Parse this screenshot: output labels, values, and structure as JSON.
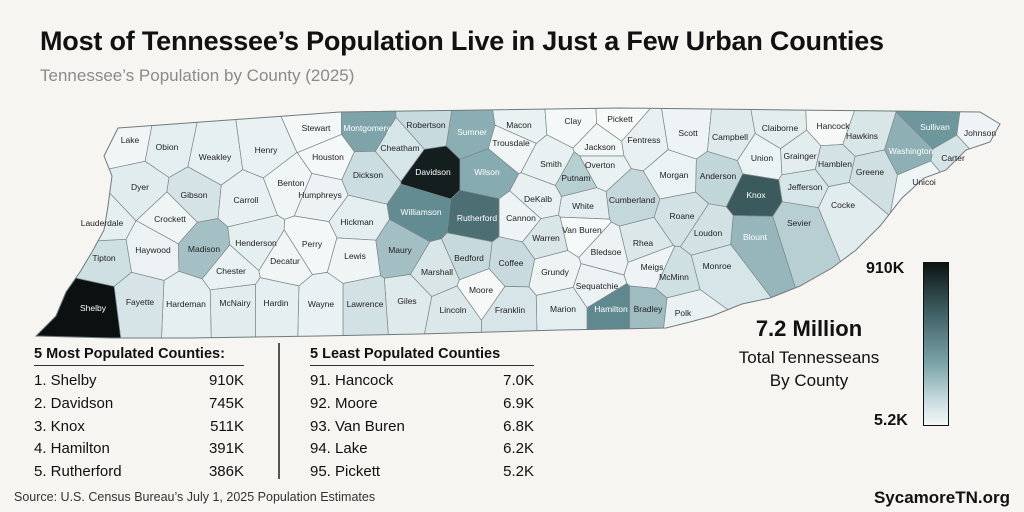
{
  "title": "Most of Tennessee’s Population Live in Just a Few Urban Counties",
  "subtitle": "Tennessee’s Population by County (2025)",
  "counties": [
    {
      "name": "Lake",
      "shade": "#f1f5f6"
    },
    {
      "name": "Obion",
      "shade": "#e4eef0"
    },
    {
      "name": "Weakley",
      "shade": "#e6eff1"
    },
    {
      "name": "Henry",
      "shade": "#e9f1f2"
    },
    {
      "name": "Stewart",
      "shade": "#f4f7f7"
    },
    {
      "name": "Montgomery",
      "shade": "#7ea4aa"
    },
    {
      "name": "Robertson",
      "shade": "#c7dadd"
    },
    {
      "name": "Sumner",
      "shade": "#8aaeb3"
    },
    {
      "name": "Macon",
      "shade": "#eaf1f2"
    },
    {
      "name": "Clay",
      "shade": "#f5f8f8"
    },
    {
      "name": "Pickett",
      "shade": "#f7f9f9"
    },
    {
      "name": "Scott",
      "shade": "#eef4f5"
    },
    {
      "name": "Campbell",
      "shade": "#dfeaec"
    },
    {
      "name": "Claiborne",
      "shade": "#e3edee"
    },
    {
      "name": "Hancock",
      "shade": "#f6f8f8"
    },
    {
      "name": "Hawkins",
      "shade": "#d9e6e8"
    },
    {
      "name": "Sullivan",
      "shade": "#6d979d"
    },
    {
      "name": "Johnson",
      "shade": "#eef4f5"
    },
    {
      "name": "Dyer",
      "shade": "#e1ecee"
    },
    {
      "name": "Gibson",
      "shade": "#d5e3e6"
    },
    {
      "name": "Carroll",
      "shade": "#e8f0f1"
    },
    {
      "name": "Benton",
      "shade": "#f0f5f5"
    },
    {
      "name": "Houston",
      "shade": "#f5f8f8"
    },
    {
      "name": "Humphreys",
      "shade": "#edf3f4"
    },
    {
      "name": "Dickson",
      "shade": "#cbdde0"
    },
    {
      "name": "Cheatham",
      "shade": "#d6e5e7"
    },
    {
      "name": "Davidson",
      "shade": "#151e1f"
    },
    {
      "name": "Wilson",
      "shade": "#86abb0"
    },
    {
      "name": "Trousdale",
      "shade": "#f0f5f5"
    },
    {
      "name": "Smith",
      "shade": "#e9f0f1"
    },
    {
      "name": "Jackson",
      "shade": "#f0f5f5"
    },
    {
      "name": "Fentress",
      "shade": "#e8f0f1"
    },
    {
      "name": "Overton",
      "shade": "#e9f1f2"
    },
    {
      "name": "Morgan",
      "shade": "#eaf2f3"
    },
    {
      "name": "Anderson",
      "shade": "#c0d6d9"
    },
    {
      "name": "Union",
      "shade": "#ebf2f3"
    },
    {
      "name": "Grainger",
      "shade": "#e3edee"
    },
    {
      "name": "Hamblen",
      "shade": "#d3e3e5"
    },
    {
      "name": "Washington",
      "shade": "#8eb0b5"
    },
    {
      "name": "Carter",
      "shade": "#d4e3e6"
    },
    {
      "name": "Unicoi",
      "shade": "#eff4f5"
    },
    {
      "name": "Greene",
      "shade": "#cfdfe2"
    },
    {
      "name": "Cocke",
      "shade": "#e1ecee"
    },
    {
      "name": "Jefferson",
      "shade": "#d6e5e7"
    },
    {
      "name": "Knox",
      "shade": "#3b5a5e"
    },
    {
      "name": "Sevier",
      "shade": "#b7cfd3"
    },
    {
      "name": "Blount",
      "shade": "#96b6bb"
    },
    {
      "name": "Loudon",
      "shade": "#d1e1e4"
    },
    {
      "name": "Roane",
      "shade": "#d2e2e4"
    },
    {
      "name": "Cumberland",
      "shade": "#c4d8db"
    },
    {
      "name": "Putnam",
      "shade": "#b6cfd2"
    },
    {
      "name": "White",
      "shade": "#e4eef0"
    },
    {
      "name": "DeKalb",
      "shade": "#e8f0f1"
    },
    {
      "name": "Van Buren",
      "shade": "#f6f9f9"
    },
    {
      "name": "Warren",
      "shade": "#d9e6e8"
    },
    {
      "name": "Cannon",
      "shade": "#eef4f5"
    },
    {
      "name": "Rutherford",
      "shade": "#4c6f74"
    },
    {
      "name": "Williamson",
      "shade": "#628c92"
    },
    {
      "name": "Maury",
      "shade": "#a3bfc3"
    },
    {
      "name": "Hickman",
      "shade": "#e4eef0"
    },
    {
      "name": "Perry",
      "shade": "#f3f7f7"
    },
    {
      "name": "Lewis",
      "shade": "#eff4f5"
    },
    {
      "name": "Marshall",
      "shade": "#d9e6e8"
    },
    {
      "name": "Bedford",
      "shade": "#c6d9dc"
    },
    {
      "name": "Coffee",
      "shade": "#c8dadd"
    },
    {
      "name": "Moore",
      "shade": "#f6f8f8"
    },
    {
      "name": "Grundy",
      "shade": "#eef3f4"
    },
    {
      "name": "Sequatchie",
      "shade": "#ecf2f3"
    },
    {
      "name": "Bledsoe",
      "shade": "#edf3f4"
    },
    {
      "name": "Rhea",
      "shade": "#dbe7e9"
    },
    {
      "name": "Meigs",
      "shade": "#eef4f5"
    },
    {
      "name": "McMinn",
      "shade": "#cfe0e3"
    },
    {
      "name": "Monroe",
      "shade": "#d6e5e7"
    },
    {
      "name": "Polk",
      "shade": "#eaf1f2"
    },
    {
      "name": "Bradley",
      "shade": "#9fbcc0"
    },
    {
      "name": "Hamilton",
      "shade": "#5f898f"
    },
    {
      "name": "Marion",
      "shade": "#e4eef0"
    },
    {
      "name": "Franklin",
      "shade": "#d8e5e8"
    },
    {
      "name": "Lincoln",
      "shade": "#dbe7e9"
    },
    {
      "name": "Giles",
      "shade": "#dfeaec"
    },
    {
      "name": "Lawrence",
      "shade": "#d2e2e4"
    },
    {
      "name": "Wayne",
      "shade": "#eaf1f2"
    },
    {
      "name": "Hardin",
      "shade": "#e5eef0"
    },
    {
      "name": "McNairy",
      "shade": "#e2ecee"
    },
    {
      "name": "Hardeman",
      "shade": "#e5eef0"
    },
    {
      "name": "Fayette",
      "shade": "#d6e4e7"
    },
    {
      "name": "Shelby",
      "shade": "#0b1111"
    },
    {
      "name": "Tipton",
      "shade": "#cfe0e2"
    },
    {
      "name": "Haywood",
      "shade": "#ecf2f3"
    },
    {
      "name": "Lauderdale",
      "shade": "#e6eff0"
    },
    {
      "name": "Crockett",
      "shade": "#eff4f5"
    },
    {
      "name": "Madison",
      "shade": "#a5c0c4"
    },
    {
      "name": "Chester",
      "shade": "#eaf1f2"
    },
    {
      "name": "Henderson",
      "shade": "#e6eff0"
    },
    {
      "name": "Decatur",
      "shade": "#f1f5f6"
    }
  ],
  "most_populated": {
    "heading": "5 Most Populated Counties:",
    "rows": [
      {
        "rank": "1. Shelby",
        "value": "910K"
      },
      {
        "rank": "2. Davidson",
        "value": "745K"
      },
      {
        "rank": "3. Knox",
        "value": "511K"
      },
      {
        "rank": "4. Hamilton",
        "value": "391K"
      },
      {
        "rank": "5. Rutherford",
        "value": "386K"
      }
    ]
  },
  "least_populated": {
    "heading": "5 Least Populated Counties",
    "rows": [
      {
        "rank": "91. Hancock",
        "value": "7.0K"
      },
      {
        "rank": "92. Moore",
        "value": "6.9K"
      },
      {
        "rank": "93. Van Buren",
        "value": "6.8K"
      },
      {
        "rank": "94. Lake",
        "value": "6.2K"
      },
      {
        "rank": "95. Pickett",
        "value": "5.2K"
      }
    ]
  },
  "total": {
    "value": "7.2 Million",
    "label_1": "Total Tennesseans",
    "label_2": "By County"
  },
  "legend": {
    "max": "910K",
    "min": "5.2K"
  },
  "source": "Source: U.S. Census Bureau’s July 1, 2025 Population Estimates",
  "brand": "SycamoreTN.org"
}
